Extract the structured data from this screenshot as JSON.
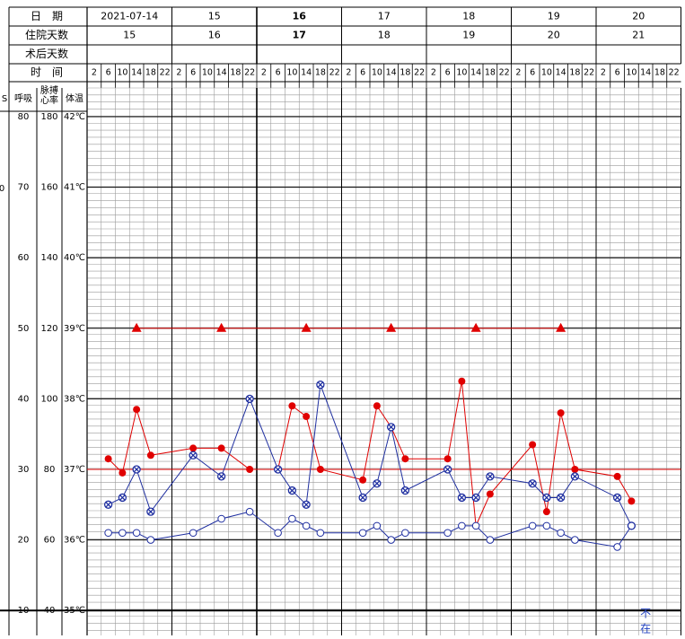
{
  "header": {
    "row_date_label": "日　期",
    "row_stay_label": "住院天数",
    "row_postop_label": "术后天数",
    "row_time_label": "时　间",
    "dates": [
      "2021-07-14",
      "15",
      "16",
      "17",
      "18",
      "19",
      "20"
    ],
    "stay_days": [
      "15",
      "16",
      "17",
      "18",
      "19",
      "20",
      "21"
    ],
    "postop_days": [
      "",
      "",
      "",
      "",
      "",
      "",
      ""
    ],
    "times": [
      "2",
      "6",
      "10",
      "14",
      "18",
      "22"
    ]
  },
  "axis": {
    "col_s_header": "S",
    "resp_header": "呼吸",
    "pulse_header": "脉搏\n心率",
    "temp_header": "体温",
    "stray_label": "0",
    "resp_ticks": [
      "80",
      "70",
      "60",
      "50",
      "40",
      "30",
      "20",
      "10"
    ],
    "pulse_ticks": [
      "180",
      "160",
      "140",
      "120",
      "100",
      "80",
      "60",
      "40"
    ],
    "temp_ticks": [
      "42℃",
      "41℃",
      "40℃",
      "39℃",
      "38℃",
      "37℃",
      "36℃",
      "35℃"
    ]
  },
  "annotation": {
    "text": "不在",
    "color": "#1f3fbf"
  },
  "colors": {
    "pulse": "#e00000",
    "temperature": "#1f2fa0",
    "respiration": "#1f2fa0",
    "reference": "#e00000",
    "grid_minor": "#9a9a9a",
    "grid_major": "#000000"
  },
  "chart_data": {
    "type": "line",
    "x_slots_per_day": 6,
    "x_slot_hours": [
      2,
      6,
      10,
      14,
      18,
      22
    ],
    "ylim_temp_c": [
      34.5,
      42.5
    ],
    "series": [
      {
        "marker": "filled-circle",
        "color": "#e00000",
        "points": [
          {
            "slot": 1,
            "pulse": 83
          },
          {
            "slot": 2,
            "pulse": 79
          },
          {
            "slot": 3,
            "pulse": 97
          },
          {
            "slot": 4,
            "pulse": 84
          },
          {
            "slot": 7,
            "pulse": 86
          },
          {
            "slot": 9,
            "pulse": 86
          },
          {
            "slot": 11,
            "pulse": 80
          },
          {
            "slot": 13,
            "pulse": 80
          },
          {
            "slot": 14,
            "pulse": 98
          },
          {
            "slot": 15,
            "pulse": 95
          },
          {
            "slot": 16,
            "pulse": 80
          },
          {
            "slot": 19,
            "pulse": 77
          },
          {
            "slot": 20,
            "pulse": 98
          },
          {
            "slot": 21,
            "pulse": 92
          },
          {
            "slot": 22,
            "pulse": 83
          },
          {
            "slot": 25,
            "pulse": 83
          },
          {
            "slot": 26,
            "pulse": 105
          },
          {
            "slot": 27,
            "pulse": 64
          },
          {
            "slot": 28,
            "pulse": 73
          },
          {
            "slot": 31,
            "pulse": 87
          },
          {
            "slot": 32,
            "pulse": 68
          },
          {
            "slot": 33,
            "pulse": 96
          },
          {
            "slot": 34,
            "pulse": 80
          },
          {
            "slot": 37,
            "pulse": 78
          },
          {
            "slot": 38,
            "pulse": 71
          }
        ]
      },
      {
        "marker": "circle-x",
        "color": "#1f2fa0",
        "points": [
          {
            "slot": 1,
            "temp_c": 36.5
          },
          {
            "slot": 2,
            "temp_c": 36.6
          },
          {
            "slot": 3,
            "temp_c": 37.0
          },
          {
            "slot": 4,
            "temp_c": 36.4
          },
          {
            "slot": 7,
            "temp_c": 37.2
          },
          {
            "slot": 9,
            "temp_c": 36.9
          },
          {
            "slot": 11,
            "temp_c": 38.0
          },
          {
            "slot": 13,
            "temp_c": 37.0
          },
          {
            "slot": 14,
            "temp_c": 36.7
          },
          {
            "slot": 15,
            "temp_c": 36.5
          },
          {
            "slot": 16,
            "temp_c": 38.2
          },
          {
            "slot": 19,
            "temp_c": 36.6
          },
          {
            "slot": 20,
            "temp_c": 36.8
          },
          {
            "slot": 21,
            "temp_c": 37.6
          },
          {
            "slot": 22,
            "temp_c": 36.7
          },
          {
            "slot": 25,
            "temp_c": 37.0
          },
          {
            "slot": 26,
            "temp_c": 36.6
          },
          {
            "slot": 27,
            "temp_c": 36.6
          },
          {
            "slot": 28,
            "temp_c": 36.9
          },
          {
            "slot": 31,
            "temp_c": 36.8
          },
          {
            "slot": 32,
            "temp_c": 36.6
          },
          {
            "slot": 33,
            "temp_c": 36.6
          },
          {
            "slot": 34,
            "temp_c": 36.9
          },
          {
            "slot": 37,
            "temp_c": 36.6
          },
          {
            "slot": 38,
            "temp_c": 36.2
          }
        ]
      },
      {
        "marker": "open-circle",
        "color": "#1f2fa0",
        "points": [
          {
            "slot": 1,
            "resp": 21
          },
          {
            "slot": 2,
            "resp": 21
          },
          {
            "slot": 3,
            "resp": 21
          },
          {
            "slot": 4,
            "resp": 20
          },
          {
            "slot": 7,
            "resp": 21
          },
          {
            "slot": 9,
            "resp": 23
          },
          {
            "slot": 11,
            "resp": 24
          },
          {
            "slot": 13,
            "resp": 21
          },
          {
            "slot": 14,
            "resp": 23
          },
          {
            "slot": 15,
            "resp": 22
          },
          {
            "slot": 16,
            "resp": 21
          },
          {
            "slot": 19,
            "resp": 21
          },
          {
            "slot": 20,
            "resp": 22
          },
          {
            "slot": 21,
            "resp": 20
          },
          {
            "slot": 22,
            "resp": 21
          },
          {
            "slot": 25,
            "resp": 21
          },
          {
            "slot": 26,
            "resp": 22
          },
          {
            "slot": 27,
            "resp": 22
          },
          {
            "slot": 28,
            "resp": 20
          },
          {
            "slot": 31,
            "resp": 22
          },
          {
            "slot": 32,
            "resp": 22
          },
          {
            "slot": 33,
            "resp": 21
          },
          {
            "slot": 34,
            "resp": 20
          },
          {
            "slot": 37,
            "resp": 19
          },
          {
            "slot": 38,
            "resp": 22
          }
        ]
      },
      {
        "marker": "triangle",
        "color": "#e00000",
        "points": [
          {
            "slot": 3,
            "pulse": 120
          },
          {
            "slot": 9,
            "pulse": 120
          },
          {
            "slot": 15,
            "pulse": 120
          },
          {
            "slot": 21,
            "pulse": 120
          },
          {
            "slot": 27,
            "pulse": 120
          },
          {
            "slot": 33,
            "pulse": 120
          }
        ]
      }
    ],
    "reference_lines": [
      {
        "axis": "temp_c",
        "value": 37
      }
    ]
  }
}
